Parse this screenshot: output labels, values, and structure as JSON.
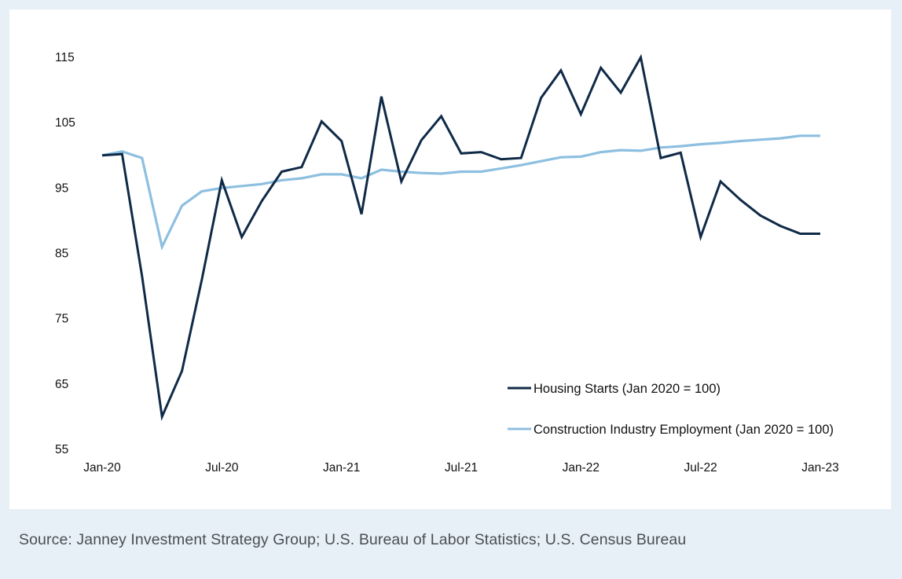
{
  "colors": {
    "housing": "#0f2a47",
    "employment": "#8dbfe0"
  },
  "chart_data": {
    "type": "line",
    "title": "",
    "xlabel": "",
    "ylabel": "",
    "ylim": [
      55,
      115
    ],
    "yticks": [
      "115",
      "105",
      "95",
      "85",
      "75",
      "65",
      "55"
    ],
    "x_tick_labels": [
      "Jan-20",
      "Jul-20",
      "Jan-21",
      "Jul-21",
      "Jan-22",
      "Jul-22",
      "Jan-23"
    ],
    "x_tick_index": [
      0,
      6,
      12,
      18,
      24,
      30,
      36
    ],
    "n_points": 37,
    "series": [
      {
        "name": "Housing Starts (Jan 2020 = 100)",
        "color_key": "housing",
        "values": [
          100.0,
          100.2,
          81.5,
          60.0,
          67.0,
          81.0,
          96.2,
          87.5,
          93.0,
          97.5,
          98.2,
          105.2,
          102.2,
          91.0,
          109.0,
          96.0,
          102.3,
          106.0,
          100.3,
          100.5,
          99.4,
          99.6,
          108.8,
          113.0,
          106.3,
          113.4,
          109.6,
          115.0,
          99.6,
          100.4,
          87.5,
          96.0,
          93.2,
          90.8,
          89.2,
          88.0,
          88.0
        ]
      },
      {
        "name": "Construction Industry Employment (Jan 2020 = 100)",
        "color_key": "employment",
        "values": [
          100.0,
          100.6,
          99.6,
          86.0,
          92.3,
          94.5,
          95.0,
          95.3,
          95.6,
          96.2,
          96.5,
          97.1,
          97.1,
          96.5,
          97.8,
          97.5,
          97.3,
          97.2,
          97.5,
          97.5,
          98.0,
          98.5,
          99.1,
          99.7,
          99.8,
          100.5,
          100.8,
          100.7,
          101.2,
          101.4,
          101.7,
          101.9,
          102.2,
          102.4,
          102.6,
          103.0,
          103.0
        ]
      }
    ],
    "legend": "bottom-right",
    "grid": false
  },
  "source_text": "Source: Janney Investment Strategy Group; U.S. Bureau of Labor Statistics; U.S. Census Bureau"
}
